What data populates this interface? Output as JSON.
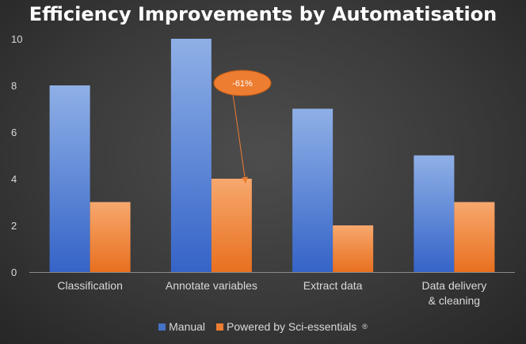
{
  "chart_data": {
    "type": "bar",
    "title": "Efficiency Improvements by Automatisation",
    "categories": [
      "Classification",
      "Annotate variables",
      "Extract data",
      "Data delivery & cleaning"
    ],
    "series": [
      {
        "name": "Manual",
        "values": [
          8,
          10,
          7,
          5
        ],
        "color": "#4472c4"
      },
      {
        "name": "Powered by Sci-essentials",
        "values": [
          3,
          4,
          2,
          3
        ],
        "color": "#ed7d31"
      }
    ],
    "ylim": [
      0,
      10
    ],
    "yticks": [
      0,
      2,
      4,
      6,
      8,
      10
    ],
    "xlabel": "",
    "ylabel": "",
    "grid": false,
    "legend_position": "bottom",
    "legend_suffix": "®",
    "annotation": {
      "text": "-61%",
      "category": "Annotate variables",
      "points_to_series": "Powered by Sci-essentials",
      "color": "#ed7d31"
    }
  }
}
